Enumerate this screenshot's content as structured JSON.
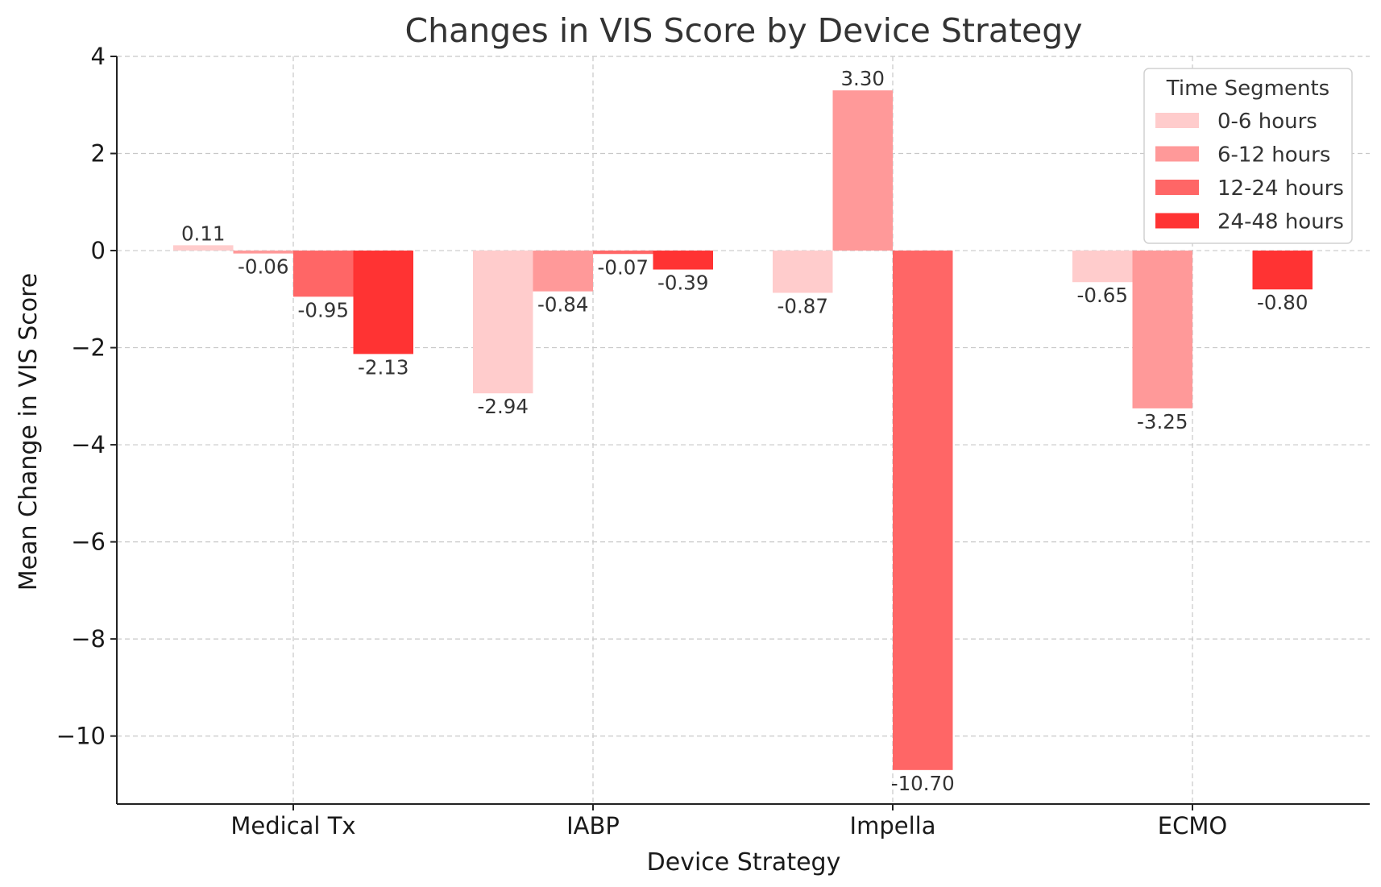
{
  "chart_data": {
    "type": "bar",
    "title": "Changes in VIS Score by Device Strategy",
    "xlabel": "Device Strategy",
    "ylabel": "Mean Change in VIS Score",
    "categories": [
      "Medical Tx",
      "IABP",
      "Impella",
      "ECMO"
    ],
    "ylim": [
      -11.4,
      4.0
    ],
    "yticks": [
      4,
      2,
      0,
      -2,
      -4,
      -6,
      -8,
      -10
    ],
    "ytick_labels": [
      "4",
      "2",
      "0",
      "−2",
      "−4",
      "−6",
      "−8",
      "−10"
    ],
    "grid": true,
    "legend": {
      "title": "Time Segments",
      "position": "top-right"
    },
    "series": [
      {
        "name": "0-6 hours",
        "color": "#ffcccc",
        "values": [
          0.11,
          -2.94,
          -0.87,
          -0.65
        ],
        "labels": [
          "0.11",
          "-2.94",
          "-0.87",
          "-0.65"
        ]
      },
      {
        "name": "6-12 hours",
        "color": "#ff9999",
        "values": [
          -0.06,
          -0.84,
          3.3,
          -3.25
        ],
        "labels": [
          "-0.06",
          "-0.84",
          "3.30",
          "-3.25"
        ]
      },
      {
        "name": "12-24 hours",
        "color": "#ff6666",
        "values": [
          -0.95,
          -0.07,
          -10.7,
          null
        ],
        "labels": [
          "-0.95",
          "-0.07",
          "-10.70",
          null
        ]
      },
      {
        "name": "24-48 hours",
        "color": "#ff3333",
        "values": [
          -2.13,
          -0.39,
          null,
          -0.8
        ],
        "labels": [
          "-2.13",
          "-0.39",
          null,
          "-0.80"
        ]
      }
    ]
  }
}
